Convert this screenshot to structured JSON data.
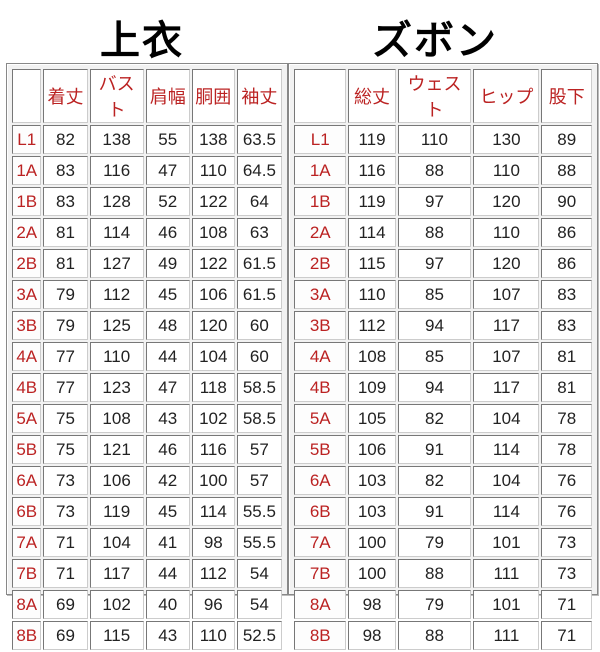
{
  "tops": {
    "title": "上衣",
    "headers": [
      "",
      "着丈",
      "バスト",
      "肩幅",
      "胴囲",
      "袖丈"
    ],
    "rows": [
      [
        "L1",
        "82",
        "138",
        "55",
        "138",
        "63.5"
      ],
      [
        "1A",
        "83",
        "116",
        "47",
        "110",
        "64.5"
      ],
      [
        "1B",
        "83",
        "128",
        "52",
        "122",
        "64"
      ],
      [
        "2A",
        "81",
        "114",
        "46",
        "108",
        "63"
      ],
      [
        "2B",
        "81",
        "127",
        "49",
        "122",
        "61.5"
      ],
      [
        "3A",
        "79",
        "112",
        "45",
        "106",
        "61.5"
      ],
      [
        "3B",
        "79",
        "125",
        "48",
        "120",
        "60"
      ],
      [
        "4A",
        "77",
        "110",
        "44",
        "104",
        "60"
      ],
      [
        "4B",
        "77",
        "123",
        "47",
        "118",
        "58.5"
      ],
      [
        "5A",
        "75",
        "108",
        "43",
        "102",
        "58.5"
      ],
      [
        "5B",
        "75",
        "121",
        "46",
        "116",
        "57"
      ],
      [
        "6A",
        "73",
        "106",
        "42",
        "100",
        "57"
      ],
      [
        "6B",
        "73",
        "119",
        "45",
        "114",
        "55.5"
      ],
      [
        "7A",
        "71",
        "104",
        "41",
        "98",
        "55.5"
      ],
      [
        "7B",
        "71",
        "117",
        "44",
        "112",
        "54"
      ],
      [
        "8A",
        "69",
        "102",
        "40",
        "96",
        "54"
      ],
      [
        "8B",
        "69",
        "115",
        "43",
        "110",
        "52.5"
      ]
    ]
  },
  "bottoms": {
    "title": "ズボン",
    "headers": [
      "",
      "総丈",
      "ウェスト",
      "ヒップ",
      "股下"
    ],
    "rows": [
      [
        "L1",
        "119",
        "110",
        "130",
        "89"
      ],
      [
        "1A",
        "116",
        "88",
        "110",
        "88"
      ],
      [
        "1B",
        "119",
        "97",
        "120",
        "90"
      ],
      [
        "2A",
        "114",
        "88",
        "110",
        "86"
      ],
      [
        "2B",
        "115",
        "97",
        "120",
        "86"
      ],
      [
        "3A",
        "110",
        "85",
        "107",
        "83"
      ],
      [
        "3B",
        "112",
        "94",
        "117",
        "83"
      ],
      [
        "4A",
        "108",
        "85",
        "107",
        "81"
      ],
      [
        "4B",
        "109",
        "94",
        "117",
        "81"
      ],
      [
        "5A",
        "105",
        "82",
        "104",
        "78"
      ],
      [
        "5B",
        "106",
        "91",
        "114",
        "78"
      ],
      [
        "6A",
        "103",
        "82",
        "104",
        "76"
      ],
      [
        "6B",
        "103",
        "91",
        "114",
        "76"
      ],
      [
        "7A",
        "100",
        "79",
        "101",
        "73"
      ],
      [
        "7B",
        "100",
        "88",
        "111",
        "73"
      ],
      [
        "8A",
        "98",
        "79",
        "101",
        "71"
      ],
      [
        "8B",
        "98",
        "88",
        "111",
        "71"
      ]
    ]
  },
  "colors": {
    "header_text": "#bb2222",
    "value_text": "#222222"
  }
}
